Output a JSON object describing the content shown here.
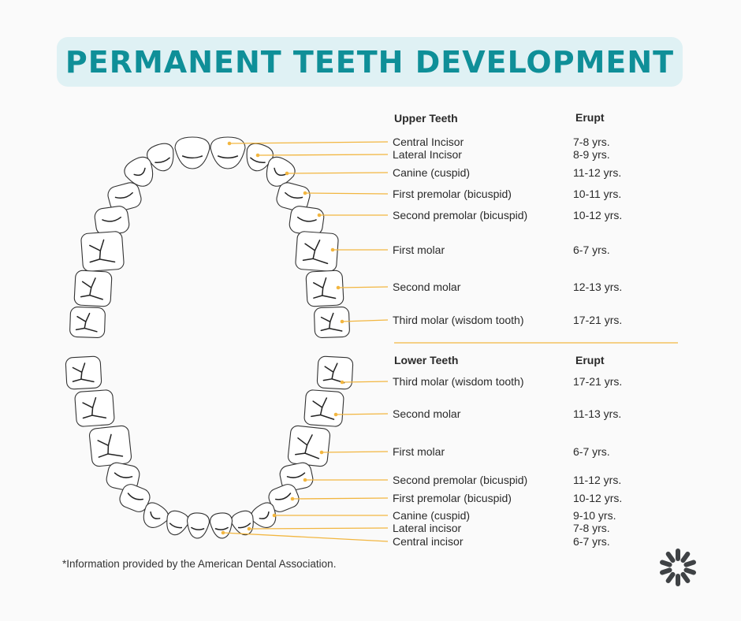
{
  "title": "PERMANENT TEETH DEVELOPMENT",
  "upper": {
    "header_name": "Upper Teeth",
    "header_erupt": "Erupt",
    "rows": [
      {
        "name": "Central Incisor",
        "erupt": "7-8 yrs."
      },
      {
        "name": "Lateral Incisor",
        "erupt": "8-9 yrs."
      },
      {
        "name": "Canine (cuspid)",
        "erupt": "11-12 yrs."
      },
      {
        "name": "First premolar (bicuspid)",
        "erupt": "10-11 yrs."
      },
      {
        "name": "Second premolar (bicuspid)",
        "erupt": "10-12 yrs."
      },
      {
        "name": "First molar",
        "erupt": "6-7 yrs."
      },
      {
        "name": "Second molar",
        "erupt": "12-13 yrs."
      },
      {
        "name": "Third molar (wisdom tooth)",
        "erupt": "17-21 yrs."
      }
    ]
  },
  "lower": {
    "header_name": "Lower Teeth",
    "header_erupt": "Erupt",
    "rows": [
      {
        "name": "Third molar (wisdom tooth)",
        "erupt": "17-21 yrs."
      },
      {
        "name": "Second molar",
        "erupt": "11-13 yrs."
      },
      {
        "name": "First molar",
        "erupt": "6-7 yrs."
      },
      {
        "name": "Second premolar (bicuspid)",
        "erupt": "11-12 yrs."
      },
      {
        "name": "First premolar (bicuspid)",
        "erupt": "10-12 yrs."
      },
      {
        "name": "Canine (cuspid)",
        "erupt": "9-10 yrs."
      },
      {
        "name": "Lateral incisor",
        "erupt": "7-8 yrs."
      },
      {
        "name": "Central incisor",
        "erupt": "6-7 yrs."
      }
    ]
  },
  "footnote": "*Information provided by the American Dental Association.",
  "colors": {
    "title": "#0f8f98",
    "title_bg": "#dff1f4",
    "accent": "#f2b640"
  },
  "icons": {
    "logo": "starburst-logo-icon"
  }
}
